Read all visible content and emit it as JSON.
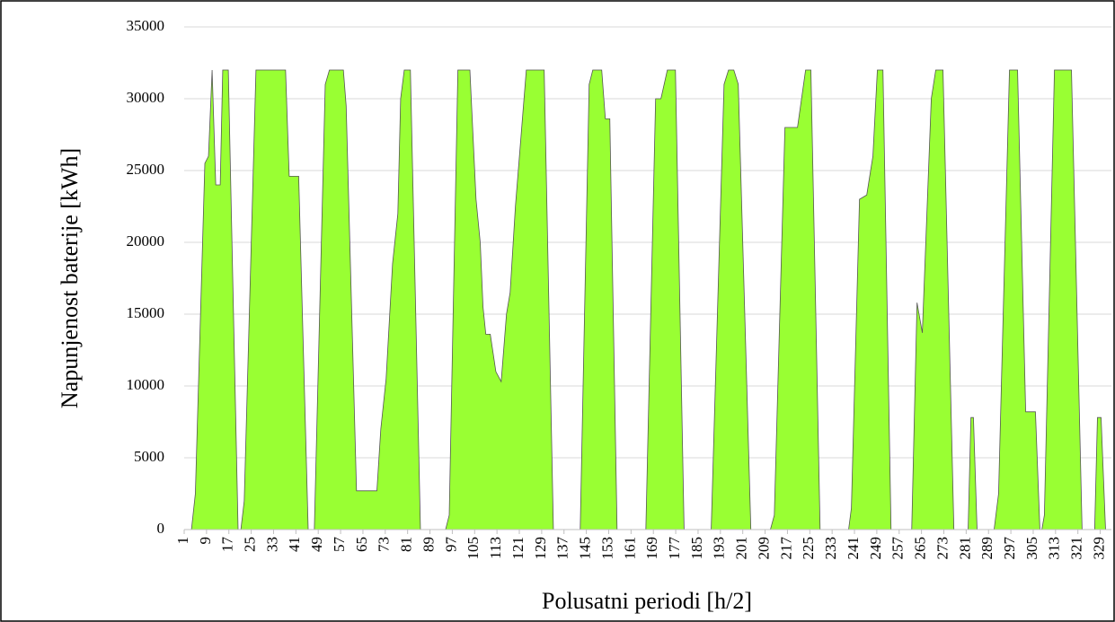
{
  "chart_data": {
    "type": "area",
    "x_label": "Polusatni periodi [h/2]",
    "y_label": "Napunjenost baterije [kWh]",
    "color": "#99ff33",
    "grid": true,
    "xlim": [
      1,
      333
    ],
    "ylim": [
      0,
      35000
    ],
    "yticks": [
      0,
      5000,
      10000,
      15000,
      20000,
      25000,
      30000,
      35000
    ],
    "xticks": [
      1,
      9,
      17,
      25,
      33,
      41,
      49,
      57,
      65,
      73,
      81,
      89,
      97,
      105,
      113,
      121,
      129,
      137,
      145,
      153,
      161,
      169,
      177,
      185,
      193,
      201,
      209,
      217,
      225,
      233,
      241,
      249,
      257,
      265,
      273,
      281,
      289,
      297,
      305,
      313,
      321,
      329
    ],
    "x": [
      1,
      3.6,
      5,
      8.4,
      9.7,
      11,
      12.3,
      13.9,
      14.8,
      16.8,
      20.3,
      21.3,
      22.5,
      26.7,
      37.3,
      38.6,
      42,
      45.4,
      47.6,
      51.5,
      53,
      58,
      59,
      62.7,
      70,
      71.4,
      73.3,
      75.6,
      77.5,
      78.5,
      79.8,
      82,
      85.6,
      94.6,
      95.9,
      99,
      103.3,
      105.5,
      107,
      108,
      109,
      110.6,
      112.6,
      114.5,
      116.4,
      117.7,
      119.6,
      123.5,
      129.9,
      133.2,
      142.8,
      146,
      147.3,
      150.5,
      151.8,
      153.4,
      156,
      166.3,
      169.8,
      171.7,
      174,
      176.9,
      180,
      189.7,
      194.3,
      195.9,
      197.8,
      199.4,
      203.9,
      210.9,
      212.3,
      216.1,
      220.6,
      223.5,
      225.4,
      228.7,
      238.9,
      239.9,
      242.8,
      245.4,
      247.6,
      249.2,
      251.2,
      254.1,
      261.5,
      263.4,
      265.3,
      268.5,
      270.1,
      272.7,
      276.6,
      281.7,
      282.7,
      283.6,
      284.9,
      291,
      292.6,
      296.5,
      299.4,
      302.3,
      305.8,
      307.4,
      308.1,
      309,
      312.6,
      318.7,
      322.5,
      327,
      328,
      329.3,
      330.9,
      333
    ],
    "values": [
      0,
      0,
      2500,
      25500,
      26000,
      32000,
      24000,
      24000,
      32000,
      32000,
      0,
      0,
      2000,
      32000,
      32000,
      24600,
      24600,
      0,
      0,
      31000,
      32000,
      32000,
      29500,
      2700,
      2700,
      7000,
      10500,
      18500,
      22000,
      30000,
      32000,
      32000,
      0,
      0,
      1000,
      32000,
      32000,
      23000,
      20000,
      15500,
      13600,
      13600,
      11000,
      10300,
      15000,
      16500,
      22500,
      32000,
      32000,
      0,
      0,
      31000,
      32000,
      32000,
      28600,
      28600,
      0,
      0,
      30000,
      30000,
      32000,
      32000,
      0,
      0,
      31000,
      32000,
      32000,
      31000,
      0,
      0,
      1000,
      28000,
      28000,
      32000,
      32000,
      0,
      0,
      1500,
      23000,
      23300,
      26000,
      32000,
      32000,
      0,
      0,
      15800,
      13700,
      30000,
      32000,
      32000,
      0,
      0,
      7800,
      7800,
      0,
      0,
      2500,
      32000,
      32000,
      8200,
      8200,
      0,
      0,
      1000,
      32000,
      32000,
      0,
      0,
      7800,
      7800,
      0,
      0
    ]
  }
}
